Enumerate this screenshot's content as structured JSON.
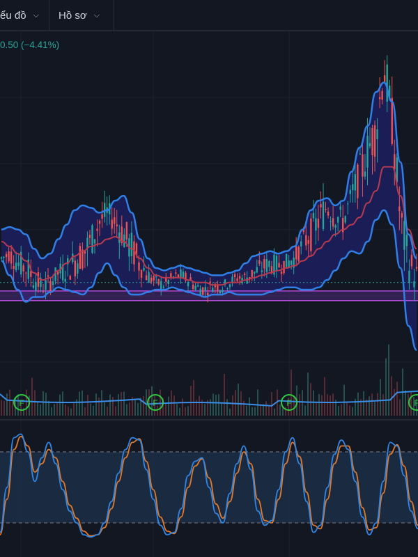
{
  "header": {
    "tabs": [
      {
        "label": "ểu đồ"
      },
      {
        "label": "Hồ sơ"
      }
    ]
  },
  "price_change": "0.50 (−4.41%)",
  "colors": {
    "background": "#131722",
    "up": "#26a69a",
    "down": "#ef5350",
    "bollinger_band": "#2f7fe6",
    "bollinger_fill": "#1d1f5f",
    "bollinger_basis": "#b83a4f",
    "stoch_k": "#2f86e6",
    "stoch_d": "#e07a2a"
  },
  "icons": [
    "chevron-down-icon",
    "earnings-marker-icon"
  ],
  "chart_data": [
    {
      "type": "candlestick",
      "overlays": [
        "bollinger-bands",
        "horizontal-level"
      ],
      "markers": [
        {
          "label": "F"
        },
        {
          "label": "F"
        },
        {
          "label": "F"
        },
        {
          "label": "F"
        }
      ],
      "series": [
        {
          "name": "close",
          "values": [
            10.8,
            11.0,
            10.6,
            10.4,
            10.0,
            9.6,
            9.8,
            10.2,
            10.3,
            10.7,
            11.0,
            11.5,
            12.3,
            12.7,
            12.3,
            11.8,
            11.2,
            10.6,
            10.1,
            9.8,
            9.7,
            10.0,
            10.1,
            9.9,
            9.6,
            9.5,
            9.7,
            9.6,
            9.8,
            10.0,
            10.0,
            10.2,
            10.4,
            10.6,
            10.5,
            10.6,
            10.8,
            11.4,
            11.8,
            12.4,
            13.0,
            12.6,
            12.3,
            13.4,
            14.2,
            15.3,
            16.1,
            18.8,
            16.4,
            12.5,
            10.6,
            10.0
          ]
        },
        {
          "name": "bb_upper",
          "values": [
            12.0,
            12.1,
            12.0,
            11.8,
            11.2,
            10.8,
            11.0,
            11.6,
            12.2,
            12.8,
            13.0,
            12.9,
            12.7,
            12.8,
            13.2,
            13.4,
            12.7,
            11.6,
            10.8,
            10.4,
            10.3,
            10.4,
            10.5,
            10.4,
            10.3,
            10.2,
            10.1,
            10.1,
            10.2,
            10.3,
            10.6,
            10.9,
            11.0,
            11.1,
            11.0,
            11.1,
            11.3,
            12.0,
            12.8,
            13.2,
            13.3,
            13.0,
            13.2,
            14.4,
            15.4,
            16.3,
            17.7,
            18.1,
            17.3,
            14.8,
            11.8,
            10.8
          ]
        },
        {
          "name": "bb_basis",
          "values": [
            11.5,
            11.3,
            11.0,
            10.7,
            10.2,
            9.9,
            10.0,
            10.3,
            10.6,
            10.9,
            11.1,
            11.3,
            11.4,
            11.6,
            11.7,
            11.5,
            11.2,
            10.8,
            10.4,
            10.1,
            10.0,
            10.0,
            10.0,
            9.9,
            9.8,
            9.8,
            9.7,
            9.7,
            9.8,
            9.8,
            9.9,
            10.0,
            10.1,
            10.2,
            10.3,
            10.4,
            10.5,
            10.7,
            10.9,
            11.2,
            11.5,
            11.8,
            12.0,
            12.2,
            12.5,
            13.1,
            13.6,
            14.6,
            14.6,
            13.4,
            12.0,
            11.2
          ]
        },
        {
          "name": "bb_lower",
          "values": [
            10.7,
            10.1,
            9.5,
            9.0,
            9.2,
            9.2,
            9.4,
            9.6,
            9.5,
            9.4,
            9.3,
            9.6,
            10.2,
            10.6,
            10.1,
            9.6,
            9.3,
            9.3,
            9.4,
            9.5,
            9.5,
            9.6,
            9.5,
            9.4,
            9.3,
            9.2,
            9.3,
            9.3,
            9.4,
            9.3,
            9.3,
            9.3,
            9.3,
            9.4,
            9.5,
            9.6,
            9.6,
            9.5,
            9.5,
            9.6,
            9.9,
            10.3,
            10.8,
            11.1,
            11.0,
            11.5,
            12.4,
            12.8,
            12.2,
            10.4,
            8.0,
            7.0
          ]
        }
      ]
    },
    {
      "type": "line",
      "series": [
        {
          "name": "stoch_k",
          "values": [
            12,
            50,
            92,
            95,
            80,
            55,
            75,
            88,
            70,
            48,
            30,
            20,
            10,
            8,
            10,
            20,
            38,
            62,
            82,
            92,
            90,
            65,
            40,
            18,
            10,
            12,
            32,
            60,
            72,
            75,
            50,
            28,
            20,
            45,
            70,
            85,
            65,
            30,
            18,
            22,
            48,
            80,
            92,
            70,
            38,
            12,
            18,
            50,
            78,
            90,
            82,
            55,
            25,
            10,
            20,
            55,
            88,
            85,
            60,
            30,
            15
          ]
        },
        {
          "name": "stoch_d",
          "values": [
            10,
            40,
            82,
            93,
            85,
            63,
            70,
            82,
            75,
            55,
            35,
            24,
            13,
            9,
            10,
            16,
            32,
            55,
            75,
            88,
            91,
            72,
            48,
            25,
            13,
            11,
            25,
            50,
            68,
            74,
            58,
            36,
            24,
            38,
            62,
            80,
            70,
            40,
            22,
            20,
            40,
            70,
            88,
            76,
            46,
            18,
            15,
            40,
            70,
            85,
            85,
            63,
            33,
            14,
            16,
            45,
            78,
            86,
            68,
            38,
            18
          ]
        },
        {
          "name": "upper_band",
          "values": [
            80
          ]
        },
        {
          "name": "lower_band",
          "values": [
            20
          ]
        }
      ]
    }
  ]
}
